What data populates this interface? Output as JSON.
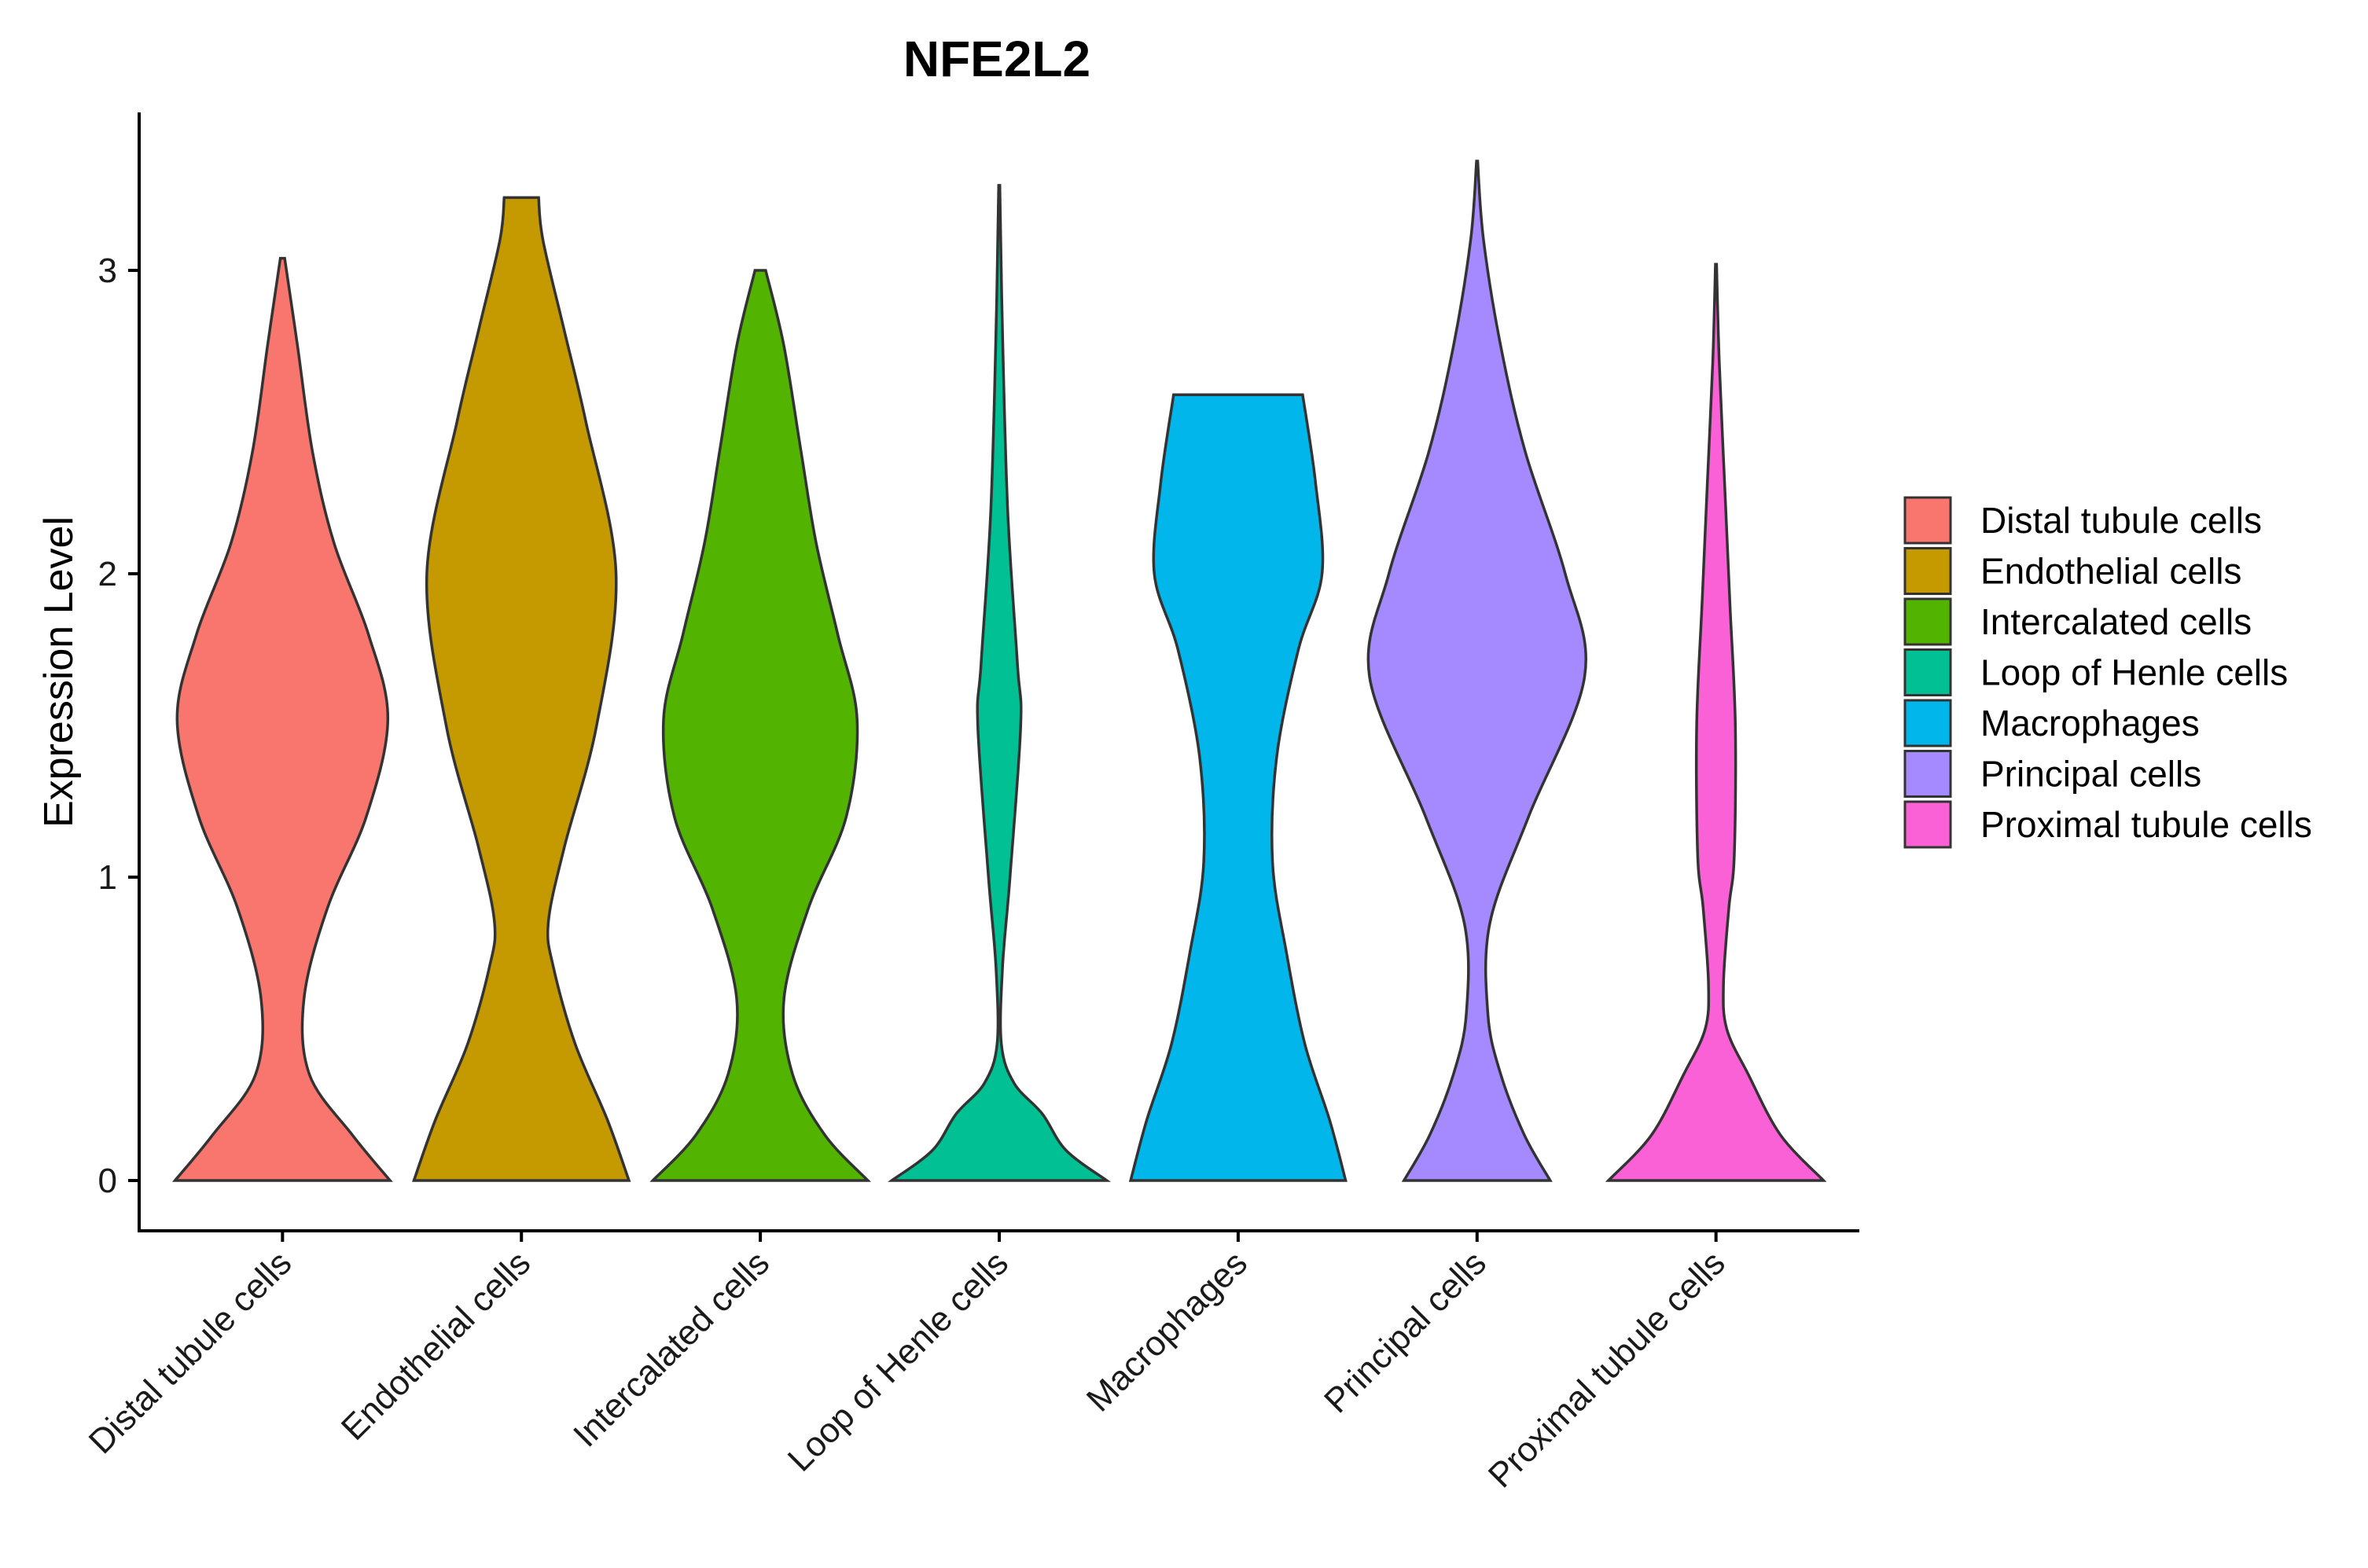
{
  "chart_data": {
    "type": "violin",
    "title": "NFE2L2",
    "xlabel": "",
    "ylabel": "Expression Level",
    "ylim": [
      -0.16,
      3.52
    ],
    "yticks": [
      0,
      1,
      2,
      3
    ],
    "grid": false,
    "legend": {
      "position": "right"
    },
    "categories": [
      "Distal tubule cells",
      "Endothelial cells",
      "Intercalated cells",
      "Loop of Henle cells",
      "Macrophages",
      "Principal cells",
      "Proximal tubule cells"
    ],
    "colors": [
      "#F8766D",
      "#C49A00",
      "#53B400",
      "#00C094",
      "#00B6EB",
      "#A58AFF",
      "#FB61D7"
    ],
    "series": [
      {
        "name": "Distal tubule cells",
        "max": 3.04,
        "density": [
          [
            0,
            1.0
          ],
          [
            0.15,
            0.65
          ],
          [
            0.35,
            0.25
          ],
          [
            0.6,
            0.2
          ],
          [
            0.9,
            0.42
          ],
          [
            1.2,
            0.78
          ],
          [
            1.52,
            0.98
          ],
          [
            1.8,
            0.8
          ],
          [
            2.1,
            0.48
          ],
          [
            2.4,
            0.28
          ],
          [
            2.75,
            0.14
          ],
          [
            3.04,
            0.02
          ]
        ]
      },
      {
        "name": "Endothelial cells",
        "max": 3.24,
        "density": [
          [
            0,
            1.0
          ],
          [
            0.2,
            0.8
          ],
          [
            0.45,
            0.5
          ],
          [
            0.7,
            0.3
          ],
          [
            0.85,
            0.25
          ],
          [
            1.1,
            0.4
          ],
          [
            1.5,
            0.7
          ],
          [
            2.0,
            0.88
          ],
          [
            2.5,
            0.6
          ],
          [
            2.8,
            0.4
          ],
          [
            3.1,
            0.2
          ],
          [
            3.24,
            0.16
          ]
        ]
      },
      {
        "name": "Intercalated cells",
        "max": 3.0,
        "density": [
          [
            0,
            1.0
          ],
          [
            0.15,
            0.6
          ],
          [
            0.35,
            0.3
          ],
          [
            0.6,
            0.22
          ],
          [
            0.9,
            0.45
          ],
          [
            1.2,
            0.8
          ],
          [
            1.52,
            0.9
          ],
          [
            1.8,
            0.72
          ],
          [
            2.1,
            0.52
          ],
          [
            2.4,
            0.38
          ],
          [
            2.75,
            0.22
          ],
          [
            3.0,
            0.05
          ]
        ]
      },
      {
        "name": "Loop of Henle cells",
        "max": 3.28,
        "density": [
          [
            0,
            1.0
          ],
          [
            0.1,
            0.62
          ],
          [
            0.22,
            0.4
          ],
          [
            0.32,
            0.14
          ],
          [
            0.45,
            0.02
          ],
          [
            0.7,
            0.03
          ],
          [
            1.0,
            0.1
          ],
          [
            1.5,
            0.2
          ],
          [
            1.7,
            0.17
          ],
          [
            2.2,
            0.08
          ],
          [
            2.8,
            0.03
          ],
          [
            3.28,
            0.005
          ]
        ]
      },
      {
        "name": "Macrophages",
        "max": 2.59,
        "density": [
          [
            0,
            1.0
          ],
          [
            0.2,
            0.85
          ],
          [
            0.45,
            0.62
          ],
          [
            0.75,
            0.45
          ],
          [
            1.05,
            0.32
          ],
          [
            1.4,
            0.36
          ],
          [
            1.75,
            0.56
          ],
          [
            2.0,
            0.78
          ],
          [
            2.3,
            0.72
          ],
          [
            2.59,
            0.6
          ]
        ]
      },
      {
        "name": "Principal cells",
        "max": 3.36,
        "density": [
          [
            0,
            0.68
          ],
          [
            0.15,
            0.44
          ],
          [
            0.35,
            0.22
          ],
          [
            0.55,
            0.1
          ],
          [
            0.85,
            0.12
          ],
          [
            1.2,
            0.48
          ],
          [
            1.66,
            1.0
          ],
          [
            2.0,
            0.82
          ],
          [
            2.4,
            0.45
          ],
          [
            2.75,
            0.22
          ],
          [
            3.1,
            0.06
          ],
          [
            3.36,
            0.005
          ]
        ]
      },
      {
        "name": "Proximal tubule cells",
        "max": 3.02,
        "density": [
          [
            0,
            1.0
          ],
          [
            0.15,
            0.6
          ],
          [
            0.35,
            0.3
          ],
          [
            0.5,
            0.1
          ],
          [
            0.65,
            0.07
          ],
          [
            0.9,
            0.12
          ],
          [
            1.07,
            0.17
          ],
          [
            1.5,
            0.18
          ],
          [
            1.9,
            0.13
          ],
          [
            2.3,
            0.08
          ],
          [
            2.7,
            0.03
          ],
          [
            3.02,
            0.005
          ]
        ]
      }
    ]
  }
}
